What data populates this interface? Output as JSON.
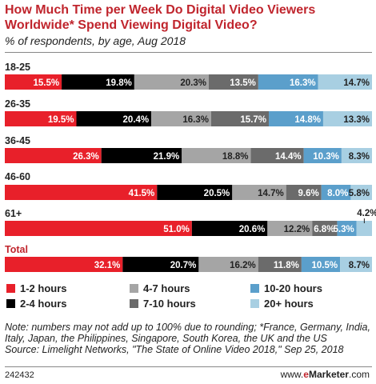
{
  "title": "How Much Time per Week Do Digital Video Viewers Worldwide* Spend Viewing Digital Video?",
  "subtitle": "% of respondents, by age, Aug 2018",
  "note": "Note: numbers may not add up to 100% due to rounding; *France, Germany, India, Italy, Japan, the Philippines, Singapore, South Korea, the UK and the US",
  "source": "Source: Limelight Networks, \"The State of Online Video 2018,\" Sep 25, 2018",
  "chart_id": "242432",
  "brand": {
    "prefix": "www.",
    "e": "e",
    "name": "Marketer",
    "suffix": ".com"
  },
  "colors": {
    "1-2 hours": "#e8202a",
    "2-4 hours": "#000000",
    "4-7 hours": "#a5a5a5",
    "7-10 hours": "#6b6b6b",
    "10-20 hours": "#5b9fcb",
    "20+ hours": "#a8cfe2",
    "title": "#c0252d"
  },
  "chart_data": {
    "type": "bar",
    "orientation": "horizontal",
    "stacked": true,
    "title": "How Much Time per Week Do Digital Video Viewers Worldwide* Spend Viewing Digital Video?",
    "subtitle": "% of respondents, by age, Aug 2018",
    "categories": [
      "18-25",
      "26-35",
      "36-45",
      "46-60",
      "61+",
      "Total"
    ],
    "series": [
      {
        "name": "1-2 hours",
        "values": [
          15.5,
          19.5,
          26.3,
          41.5,
          51.0,
          32.1
        ],
        "labels": [
          "15.5%",
          "19.5%",
          "26.3%",
          "41.5%",
          "51.0%",
          "32.1%"
        ]
      },
      {
        "name": "2-4 hours",
        "values": [
          19.8,
          20.4,
          21.9,
          20.5,
          20.6,
          20.7
        ],
        "labels": [
          "19.8%",
          "20.4%",
          "21.9%",
          "20.5%",
          "20.6%",
          "20.7%"
        ]
      },
      {
        "name": "4-7 hours",
        "values": [
          20.3,
          16.3,
          18.8,
          14.7,
          12.2,
          16.2
        ],
        "labels": [
          "20.3%",
          "16.3%",
          "18.8%",
          "14.7%",
          "12.2%",
          "16.2%"
        ]
      },
      {
        "name": "7-10 hours",
        "values": [
          13.5,
          15.7,
          14.4,
          9.6,
          6.8,
          11.8
        ],
        "labels": [
          "13.5%",
          "15.7%",
          "14.4%",
          "9.6%",
          "6.8%",
          "11.8%"
        ]
      },
      {
        "name": "10-20 hours",
        "values": [
          16.3,
          14.8,
          10.3,
          8.0,
          5.3,
          10.5
        ],
        "labels": [
          "16.3%",
          "14.8%",
          "10.3%",
          "8.0%",
          "5.3%",
          "10.5%"
        ]
      },
      {
        "name": "20+ hours",
        "values": [
          14.7,
          13.3,
          8.3,
          5.8,
          4.2,
          8.7
        ],
        "labels": [
          "14.7%",
          "13.3%",
          "8.3%",
          "5.8%",
          "4.2%",
          "8.7%"
        ]
      }
    ],
    "legend_position": "bottom",
    "grid": false
  }
}
